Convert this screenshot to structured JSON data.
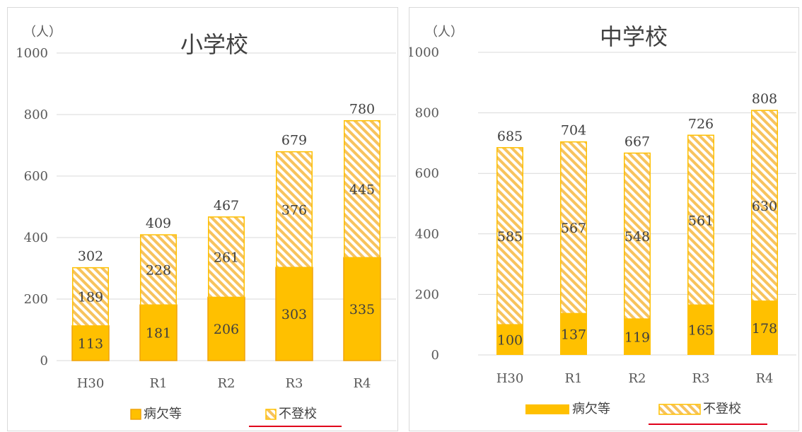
{
  "colors": {
    "sick": "#ffc000",
    "sick_border": "#f0a30a",
    "absent_stroke": "#ffc000",
    "absent_hatch": "#f7c35d",
    "underline": "#e0001a",
    "grid": "#d9d9d9",
    "axis_text": "#595959"
  },
  "chart_data": [
    {
      "type": "bar",
      "stacked": true,
      "title": "小学校",
      "unit": "（人）",
      "categories": [
        "H30",
        "R1",
        "R2",
        "R3",
        "R4"
      ],
      "series": [
        {
          "name": "病欠等",
          "values": [
            113,
            181,
            206,
            303,
            335
          ]
        },
        {
          "name": "不登校",
          "values": [
            189,
            228,
            261,
            376,
            445
          ]
        }
      ],
      "totals": [
        302,
        409,
        467,
        679,
        780
      ],
      "ylim": [
        0,
        1000
      ],
      "yticks": [
        0,
        200,
        400,
        600,
        800,
        1000
      ],
      "grid": true,
      "legend": "bottom"
    },
    {
      "type": "bar",
      "stacked": true,
      "title": "中学校",
      "unit": "（人）",
      "categories": [
        "H30",
        "R1",
        "R2",
        "R3",
        "R4"
      ],
      "series": [
        {
          "name": "病欠等",
          "values": [
            100,
            137,
            119,
            165,
            178
          ]
        },
        {
          "name": "不登校",
          "values": [
            585,
            567,
            548,
            561,
            630
          ]
        }
      ],
      "totals": [
        685,
        704,
        667,
        726,
        808
      ],
      "ylim": [
        0,
        1000
      ],
      "yticks": [
        0,
        200,
        400,
        600,
        800,
        1000
      ],
      "grid": true,
      "legend": "bottom"
    }
  ]
}
